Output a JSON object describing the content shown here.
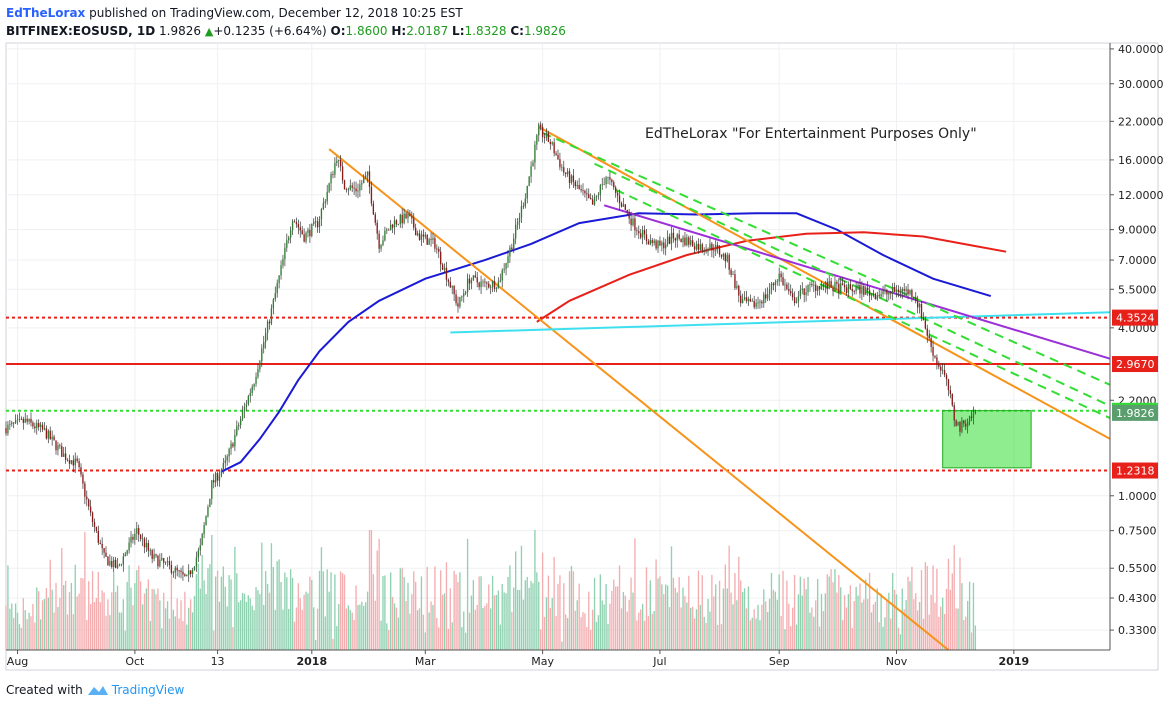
{
  "header": {
    "author": "EdTheLorax",
    "published": " published on TradingView.com, December 12, 2018 10:25 EST",
    "symbol": "BITFINEX:EOSUSD, 1D",
    "price": "1.9826",
    "change": "+0.1235 (+6.64%)",
    "o_label": "O:",
    "o_value": "1.8600",
    "h_label": "H:",
    "h_value": "2.0187",
    "l_label": "L:",
    "l_value": "1.8328",
    "c_label": "C:",
    "c_value": "1.9826"
  },
  "footer": {
    "created_with": "Created with",
    "brand": "TradingView"
  },
  "annotation": "EdTheLorax \"For Entertainment Purposes Only\"",
  "colors": {
    "up": "#2e7d32",
    "down": "#8b1a1a",
    "sma_blue": "#1a1ad6",
    "sma_red": "#e8201a",
    "orange": "#f7931a",
    "cyan": "#3ee0f0",
    "purple": "#9b30d9",
    "green_dash": "#33dd33",
    "red_level": "#e8201a",
    "vol_up": "#8fd1b0",
    "vol_down": "#f4aeb0",
    "box": "#33dd33"
  },
  "chart_data": {
    "type": "candlestick",
    "symbol": "BITFINEX:EOSUSD",
    "interval": "1D",
    "y_scale": "log",
    "ylim": [
      0.28,
      42
    ],
    "xlim": [
      "2017-07-26",
      "2019-02-20"
    ],
    "y_ticks": [
      "40.0000",
      "30.0000",
      "22.0000",
      "16.0000",
      "12.0000",
      "9.0000",
      "7.0000",
      "5.5000",
      "4.0000",
      "2.2000",
      "1.0000",
      "0.7500",
      "0.5500",
      "0.4300",
      "0.3300"
    ],
    "x_ticks": [
      {
        "label": "Aug",
        "date": "2017-08-01"
      },
      {
        "label": "Oct",
        "date": "2017-10-01"
      },
      {
        "label": "13",
        "date": "2017-11-13"
      },
      {
        "label": "2018",
        "date": "2018-01-01",
        "bold": true
      },
      {
        "label": "Mar",
        "date": "2018-03-01"
      },
      {
        "label": "May",
        "date": "2018-05-01"
      },
      {
        "label": "Jul",
        "date": "2018-07-01"
      },
      {
        "label": "Sep",
        "date": "2018-09-01"
      },
      {
        "label": "Nov",
        "date": "2018-11-01"
      },
      {
        "label": "2019",
        "date": "2019-01-01",
        "bold": true
      }
    ],
    "close_path": [
      [
        "2017-07-26",
        1.75
      ],
      [
        "2017-08-05",
        1.85
      ],
      [
        "2017-08-15",
        1.7
      ],
      [
        "2017-08-25",
        1.4
      ],
      [
        "2017-09-01",
        1.3
      ],
      [
        "2017-09-08",
        0.85
      ],
      [
        "2017-09-15",
        0.6
      ],
      [
        "2017-09-22",
        0.55
      ],
      [
        "2017-10-02",
        0.75
      ],
      [
        "2017-10-10",
        0.6
      ],
      [
        "2017-10-20",
        0.55
      ],
      [
        "2017-10-28",
        0.5
      ],
      [
        "2017-11-04",
        0.65
      ],
      [
        "2017-11-10",
        1.1
      ],
      [
        "2017-11-17",
        1.3
      ],
      [
        "2017-11-24",
        1.8
      ],
      [
        "2017-12-02",
        2.6
      ],
      [
        "2017-12-10",
        4.3
      ],
      [
        "2017-12-16",
        6.5
      ],
      [
        "2017-12-22",
        10.0
      ],
      [
        "2017-12-28",
        8.5
      ],
      [
        "2018-01-04",
        9.5
      ],
      [
        "2018-01-10",
        13.0
      ],
      [
        "2018-01-14",
        16.5
      ],
      [
        "2018-01-18",
        13.0
      ],
      [
        "2018-01-24",
        12.5
      ],
      [
        "2018-01-30",
        14.0
      ],
      [
        "2018-02-05",
        8.0
      ],
      [
        "2018-02-12",
        9.5
      ],
      [
        "2018-02-20",
        10.0
      ],
      [
        "2018-02-26",
        8.5
      ],
      [
        "2018-03-06",
        8.0
      ],
      [
        "2018-03-12",
        6.2
      ],
      [
        "2018-03-18",
        4.8
      ],
      [
        "2018-03-24",
        6.0
      ],
      [
        "2018-04-01",
        5.7
      ],
      [
        "2018-04-08",
        5.8
      ],
      [
        "2018-04-15",
        8.0
      ],
      [
        "2018-04-22",
        12.0
      ],
      [
        "2018-04-29",
        20.5
      ],
      [
        "2018-05-05",
        18.5
      ],
      [
        "2018-05-12",
        14.5
      ],
      [
        "2018-05-20",
        12.5
      ],
      [
        "2018-05-27",
        11.0
      ],
      [
        "2018-06-03",
        14.0
      ],
      [
        "2018-06-10",
        11.5
      ],
      [
        "2018-06-17",
        9.5
      ],
      [
        "2018-06-24",
        8.3
      ],
      [
        "2018-07-01",
        7.8
      ],
      [
        "2018-07-08",
        8.5
      ],
      [
        "2018-07-15",
        8.2
      ],
      [
        "2018-07-22",
        7.8
      ],
      [
        "2018-07-29",
        7.8
      ],
      [
        "2018-08-05",
        7.0
      ],
      [
        "2018-08-12",
        5.0
      ],
      [
        "2018-08-18",
        4.8
      ],
      [
        "2018-08-25",
        5.2
      ],
      [
        "2018-09-01",
        6.2
      ],
      [
        "2018-09-08",
        5.0
      ],
      [
        "2018-09-15",
        5.5
      ],
      [
        "2018-09-22",
        5.7
      ],
      [
        "2018-09-29",
        5.6
      ],
      [
        "2018-10-06",
        5.5
      ],
      [
        "2018-10-13",
        5.5
      ],
      [
        "2018-10-20",
        5.3
      ],
      [
        "2018-10-27",
        5.3
      ],
      [
        "2018-11-03",
        5.5
      ],
      [
        "2018-11-10",
        5.3
      ],
      [
        "2018-11-14",
        4.5
      ],
      [
        "2018-11-18",
        3.6
      ],
      [
        "2018-11-22",
        3.0
      ],
      [
        "2018-11-25",
        2.8
      ],
      [
        "2018-11-28",
        2.4
      ],
      [
        "2018-12-01",
        1.9
      ],
      [
        "2018-12-04",
        1.75
      ],
      [
        "2018-12-07",
        1.85
      ],
      [
        "2018-12-12",
        1.9826
      ]
    ],
    "sma_blue": [
      [
        "2017-11-15",
        1.22
      ],
      [
        "2017-11-25",
        1.32
      ],
      [
        "2017-12-05",
        1.6
      ],
      [
        "2017-12-15",
        2.0
      ],
      [
        "2017-12-25",
        2.6
      ],
      [
        "2018-01-05",
        3.3
      ],
      [
        "2018-01-20",
        4.2
      ],
      [
        "2018-02-05",
        5.0
      ],
      [
        "2018-03-01",
        6.0
      ],
      [
        "2018-04-01",
        7.0
      ],
      [
        "2018-04-25",
        8.0
      ],
      [
        "2018-05-20",
        9.5
      ],
      [
        "2018-06-20",
        10.3
      ],
      [
        "2018-07-20",
        10.2
      ],
      [
        "2018-08-20",
        10.3
      ],
      [
        "2018-09-10",
        10.3
      ],
      [
        "2018-10-01",
        9.0
      ],
      [
        "2018-10-25",
        7.3
      ],
      [
        "2018-11-20",
        6.0
      ],
      [
        "2018-12-20",
        5.2
      ]
    ],
    "sma_red": [
      [
        "2018-04-28",
        4.2
      ],
      [
        "2018-05-15",
        5.0
      ],
      [
        "2018-06-15",
        6.2
      ],
      [
        "2018-07-15",
        7.3
      ],
      [
        "2018-08-15",
        8.2
      ],
      [
        "2018-09-15",
        8.7
      ],
      [
        "2018-10-15",
        8.8
      ],
      [
        "2018-11-15",
        8.5
      ],
      [
        "2018-12-10",
        7.9
      ],
      [
        "2018-12-28",
        7.5
      ]
    ],
    "horizontal_levels": [
      {
        "label": "4.3524",
        "value": 4.3524,
        "style": "dotted",
        "color": "#e8201a"
      },
      {
        "label": "2.9670",
        "value": 2.967,
        "style": "solid",
        "color": "#e8201a"
      },
      {
        "label": "2.0169",
        "value": 2.0169,
        "style": "dotted",
        "color": "#33dd33"
      },
      {
        "label": "1.9826",
        "value": 1.9826,
        "style": "last",
        "color": "#5a9e6e"
      },
      {
        "label": "1.2318",
        "value": 1.2318,
        "style": "dotted",
        "color": "#e8201a"
      }
    ],
    "trendlines": [
      {
        "color": "#f7931a",
        "style": "solid",
        "points": [
          [
            "2018-01-10",
            17.5
          ],
          [
            "2018-11-28",
            0.28
          ]
        ]
      },
      {
        "color": "#f7931a",
        "style": "solid",
        "points": [
          [
            "2018-04-29",
            21.0
          ],
          [
            "2019-02-20",
            1.6
          ]
        ]
      },
      {
        "color": "#3ee0f0",
        "style": "solid",
        "points": [
          [
            "2018-03-14",
            3.85
          ],
          [
            "2019-02-20",
            4.55
          ]
        ]
      },
      {
        "color": "#9b30d9",
        "style": "solid",
        "points": [
          [
            "2018-06-02",
            11.0
          ],
          [
            "2019-02-20",
            3.1
          ]
        ]
      },
      {
        "color": "#33dd33",
        "style": "dashed",
        "points": [
          [
            "2018-05-01",
            20.0
          ],
          [
            "2019-02-20",
            2.5
          ]
        ]
      },
      {
        "color": "#33dd33",
        "style": "dashed",
        "points": [
          [
            "2018-05-28",
            15.5
          ],
          [
            "2019-02-20",
            2.1
          ]
        ]
      },
      {
        "color": "#33dd33",
        "style": "dashed",
        "points": [
          [
            "2018-06-08",
            12.5
          ],
          [
            "2019-02-20",
            1.9
          ]
        ]
      }
    ],
    "box": {
      "x0": "2018-11-25",
      "x1": "2019-01-10",
      "y0": 2.02,
      "y1": 1.26,
      "color": "#33dd33"
    }
  }
}
